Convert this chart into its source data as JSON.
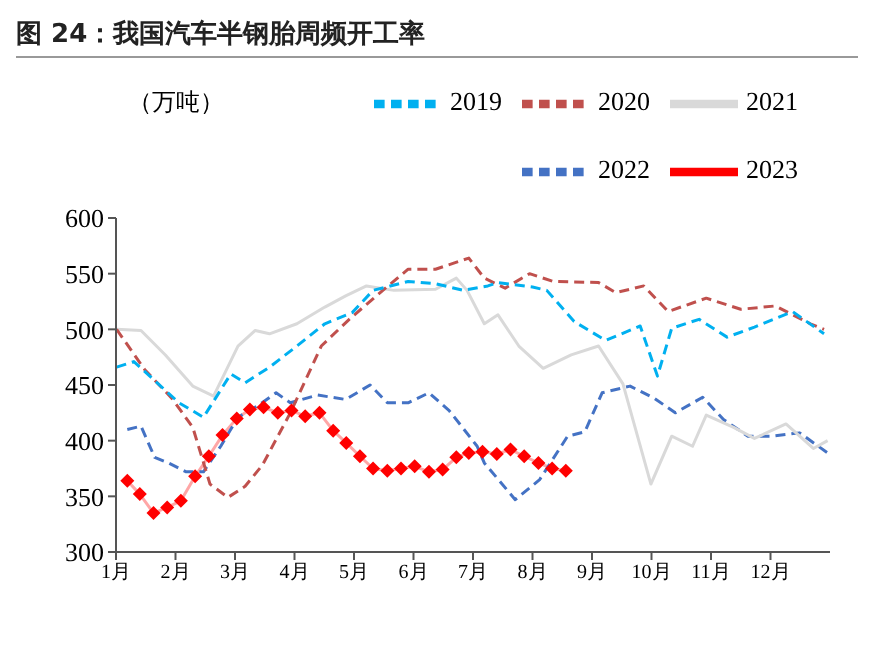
{
  "chart_data": {
    "type": "line",
    "title": "图 24：我国汽车半钢胎周频开工率",
    "ylabel": "（万吨）",
    "xlim": [
      1,
      13
    ],
    "xticks": [
      {
        "value": 1,
        "label": "1月"
      },
      {
        "value": 2,
        "label": "2月"
      },
      {
        "value": 3,
        "label": "3月"
      },
      {
        "value": 4,
        "label": "4月"
      },
      {
        "value": 5,
        "label": "5月"
      },
      {
        "value": 6,
        "label": "6月"
      },
      {
        "value": 7,
        "label": "7月"
      },
      {
        "value": 8,
        "label": "8月"
      },
      {
        "value": 9,
        "label": "9月"
      },
      {
        "value": 10,
        "label": "10月"
      },
      {
        "value": 11,
        "label": "11月"
      },
      {
        "value": 12,
        "label": "12月"
      }
    ],
    "ylim": [
      300,
      600
    ],
    "yticks": [
      300,
      350,
      400,
      450,
      500,
      550,
      600
    ],
    "grid": false,
    "legend": "top right",
    "series": [
      {
        "name": "2023",
        "color": "#ff0000",
        "marker": "diamond",
        "line_style": "solid",
        "x": [
          1.19,
          1.4,
          1.63,
          1.86,
          2.09,
          2.33,
          2.56,
          2.79,
          3.03,
          3.25,
          3.48,
          3.72,
          3.95,
          4.18,
          4.42,
          4.65,
          4.87,
          5.1,
          5.32,
          5.56,
          5.79,
          6.02,
          6.26,
          6.49,
          6.72,
          6.93,
          7.16,
          7.4,
          7.63,
          7.86,
          8.1,
          8.33,
          8.56
        ],
        "values": [
          364,
          352,
          335,
          340,
          346,
          368,
          386,
          405,
          420,
          428,
          430,
          425,
          427,
          422,
          425,
          409,
          398,
          386,
          375,
          373,
          375,
          377,
          372,
          374,
          385,
          389,
          390,
          388,
          392,
          386,
          380,
          375,
          373
        ]
      },
      {
        "name": "2022",
        "color": "#4472c4",
        "marker": "none",
        "line_style": "dashed",
        "x": [
          1.19,
          1.42,
          1.65,
          1.88,
          2.18,
          2.47,
          2.76,
          3.05,
          3.4,
          3.69,
          3.93,
          4.39,
          4.86,
          5.27,
          5.56,
          5.91,
          6.26,
          6.6,
          7.07,
          7.19,
          7.71,
          8.12,
          8.59,
          8.88,
          9.17,
          9.64,
          10.05,
          10.4,
          10.86,
          11.21,
          11.62,
          12.02,
          12.49,
          12.96
        ],
        "values": [
          410,
          413,
          385,
          380,
          372,
          372,
          395,
          421,
          432,
          443,
          434,
          441,
          437,
          450,
          434,
          434,
          443,
          427,
          395,
          380,
          347,
          365,
          404,
          408,
          443,
          449,
          438,
          425,
          439,
          419,
          404,
          404,
          407,
          389
        ]
      },
      {
        "name": "2021",
        "color": "#d9d9d9",
        "marker": "none",
        "line_style": "solid",
        "x": [
          1.01,
          1.42,
          1.83,
          2.29,
          2.64,
          3.05,
          3.34,
          3.58,
          4.04,
          4.51,
          4.86,
          5.21,
          5.67,
          6.37,
          6.72,
          6.9,
          7.19,
          7.42,
          7.77,
          8.18,
          8.65,
          9.11,
          9.52,
          9.99,
          10.34,
          10.69,
          10.92,
          11.38,
          11.73,
          12.26,
          12.72,
          12.96
        ],
        "values": [
          500,
          499,
          477,
          449,
          440,
          485,
          499,
          496,
          505,
          520,
          530,
          539,
          535,
          536,
          546,
          535,
          505,
          513,
          485,
          465,
          477,
          485,
          451,
          361,
          404,
          395,
          423,
          412,
          402,
          415,
          393,
          400
        ]
      },
      {
        "name": "2020",
        "color": "#c0504d",
        "marker": "none",
        "line_style": "dashed",
        "x": [
          1.01,
          1.48,
          1.94,
          2.29,
          2.58,
          2.88,
          3.17,
          3.46,
          3.93,
          4.45,
          4.92,
          5.44,
          5.91,
          6.37,
          6.93,
          7.19,
          7.54,
          7.95,
          8.35,
          9.11,
          9.4,
          9.87,
          10.28,
          10.92,
          11.5,
          12.08,
          12.67,
          12.9
        ],
        "values": [
          500,
          464,
          438,
          412,
          361,
          349,
          359,
          378,
          425,
          485,
          509,
          533,
          554,
          554,
          564,
          546,
          537,
          550,
          543,
          542,
          533,
          539,
          516,
          528,
          518,
          521,
          505,
          500
        ]
      },
      {
        "name": "2019",
        "color": "#00b0f0",
        "marker": "none",
        "line_style": "dashed",
        "x": [
          1.01,
          1.3,
          1.71,
          2.06,
          2.47,
          2.93,
          3.17,
          3.58,
          4.04,
          4.51,
          4.97,
          5.32,
          5.91,
          6.37,
          6.84,
          7.25,
          7.42,
          8.0,
          8.24,
          8.7,
          9.23,
          9.81,
          10.1,
          10.34,
          10.8,
          11.27,
          11.73,
          12.37,
          12.9
        ],
        "values": [
          466,
          471,
          451,
          434,
          421,
          460,
          452,
          466,
          485,
          505,
          515,
          535,
          543,
          541,
          535,
          539,
          542,
          538,
          535,
          507,
          490,
          503,
          458,
          501,
          509,
          493,
          502,
          516,
          496
        ]
      }
    ]
  }
}
